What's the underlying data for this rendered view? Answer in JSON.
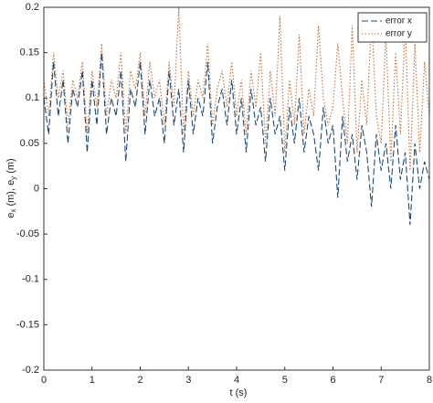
{
  "chart_data": {
    "type": "line",
    "xlabel": "t (s)",
    "ylabel": [
      "e",
      "x",
      " (m), e",
      "y",
      " (m)"
    ],
    "x": [
      0,
      0.1,
      0.2,
      0.3,
      0.4,
      0.5,
      0.6,
      0.7,
      0.8,
      0.9,
      1,
      1.1,
      1.2,
      1.3,
      1.4,
      1.5,
      1.6,
      1.7,
      1.8,
      1.9,
      2,
      2.1,
      2.2,
      2.3,
      2.4,
      2.5,
      2.6,
      2.7,
      2.8,
      2.9,
      3,
      3.1,
      3.2,
      3.3,
      3.4,
      3.5,
      3.6,
      3.7,
      3.8,
      3.9,
      4,
      4.1,
      4.2,
      4.3,
      4.4,
      4.5,
      4.6,
      4.7,
      4.8,
      4.9,
      5,
      5.1,
      5.2,
      5.3,
      5.4,
      5.5,
      5.6,
      5.7,
      5.8,
      5.9,
      6,
      6.1,
      6.2,
      6.3,
      6.4,
      6.5,
      6.6,
      6.7,
      6.8,
      6.9,
      7,
      7.1,
      7.2,
      7.3,
      7.4,
      7.5,
      7.6,
      7.7,
      7.8,
      7.9,
      8
    ],
    "series": [
      {
        "name": "error x",
        "color": "#1f4a73",
        "dash": "7,3",
        "values": [
          0.1,
          0.06,
          0.14,
          0.08,
          0.12,
          0.05,
          0.11,
          0.09,
          0.13,
          0.04,
          0.12,
          0.07,
          0.15,
          0.06,
          0.1,
          0.08,
          0.13,
          0.03,
          0.11,
          0.09,
          0.14,
          0.06,
          0.12,
          0.08,
          0.1,
          0.05,
          0.13,
          0.07,
          0.11,
          0.04,
          0.12,
          0.06,
          0.1,
          0.08,
          0.14,
          0.05,
          0.09,
          0.11,
          0.07,
          0.12,
          0.06,
          0.1,
          0.04,
          0.11,
          0.07,
          0.09,
          0.03,
          0.1,
          0.06,
          0.08,
          0.02,
          0.09,
          0.05,
          0.1,
          0.04,
          0.08,
          0.06,
          0.02,
          0.09,
          0.05,
          0.07,
          -0.01,
          0.08,
          0.03,
          0.06,
          0.01,
          0.07,
          0.04,
          -0.02,
          0.06,
          0.02,
          0.05,
          0,
          0.07,
          0.01,
          0.04,
          -0.04,
          0.05,
          0,
          0.03,
          0.01
        ]
      },
      {
        "name": "error y",
        "color": "#c0703a",
        "dash": "1.5,2",
        "values": [
          0.12,
          0.08,
          0.15,
          0.1,
          0.13,
          0.07,
          0.12,
          0.1,
          0.14,
          0.06,
          0.13,
          0.09,
          0.16,
          0.08,
          0.12,
          0.1,
          0.15,
          0.06,
          0.13,
          0.11,
          0.15,
          0.08,
          0.14,
          0.1,
          0.12,
          0.07,
          0.14,
          0.09,
          0.2,
          0.06,
          0.13,
          0.08,
          0.12,
          0.1,
          0.16,
          0.07,
          0.11,
          0.13,
          0.09,
          0.14,
          0.08,
          0.12,
          0.06,
          0.13,
          0.09,
          0.15,
          0.05,
          0.13,
          0.08,
          0.19,
          0.04,
          0.12,
          0.07,
          0.17,
          0.06,
          0.11,
          0.08,
          0.18,
          0.1,
          0.07,
          0.09,
          0.16,
          0.1,
          0.05,
          0.18,
          0.04,
          0.12,
          0.07,
          0.19,
          0.08,
          0.05,
          0.17,
          0.03,
          0.15,
          0.06,
          0.18,
          0.02,
          0.16,
          0.04,
          0.14,
          0.08
        ]
      }
    ],
    "xlim": [
      0,
      8
    ],
    "xticks": [
      0,
      1,
      2,
      3,
      4,
      5,
      6,
      7,
      8
    ],
    "ylim": [
      -0.2,
      0.2
    ],
    "yticks": [
      -0.2,
      -0.15,
      -0.1,
      -0.05,
      0,
      0.05,
      0.1,
      0.15,
      0.2
    ],
    "legend": "top-right"
  }
}
